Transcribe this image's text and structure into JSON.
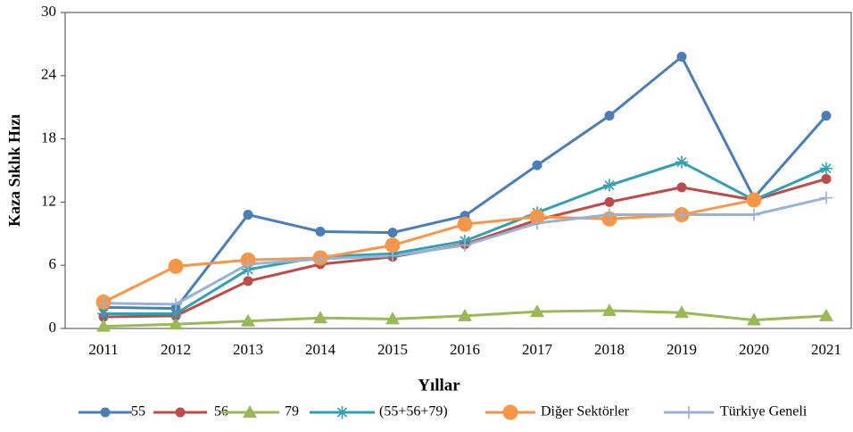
{
  "chart_data": {
    "type": "line",
    "x_label": "Yıllar",
    "y_label": "Kaza Sıklık Hızı",
    "categories": [
      "2011",
      "2012",
      "2013",
      "2014",
      "2015",
      "2016",
      "2017",
      "2018",
      "2019",
      "2020",
      "2021"
    ],
    "series": [
      {
        "name": "55",
        "color": "#4a7ebb",
        "marker": "circle",
        "values": [
          2.0,
          1.9,
          10.8,
          9.2,
          9.1,
          10.7,
          15.5,
          20.2,
          25.8,
          12.4,
          20.2
        ]
      },
      {
        "name": "56",
        "color": "#be4b48",
        "marker": "circle",
        "values": [
          1.1,
          1.2,
          4.5,
          6.1,
          6.8,
          8.0,
          10.3,
          12.0,
          13.4,
          12.2,
          14.2
        ]
      },
      {
        "name": "79",
        "color": "#98b954",
        "marker": "triangle",
        "values": [
          0.2,
          0.4,
          0.7,
          1.0,
          0.9,
          1.2,
          1.6,
          1.7,
          1.5,
          0.8,
          1.2
        ]
      },
      {
        "name": "(55+56+79)",
        "color": "#31a0b5",
        "marker": "asterisk",
        "values": [
          1.4,
          1.4,
          5.6,
          6.8,
          7.1,
          8.3,
          11.0,
          13.6,
          15.8,
          12.2,
          15.2
        ]
      },
      {
        "name": "Diğer Sektörler",
        "color": "#f79646",
        "marker": "bigcircle",
        "values": [
          2.5,
          5.9,
          6.5,
          6.7,
          7.9,
          9.9,
          10.6,
          10.4,
          10.8,
          12.2,
          null
        ]
      },
      {
        "name": "Türkiye Geneli",
        "color": "#95b3d7",
        "marker": "plus",
        "values": [
          2.4,
          2.3,
          6.1,
          6.6,
          6.9,
          7.9,
          10.0,
          10.8,
          10.8,
          10.8,
          12.4
        ]
      }
    ],
    "ylim": [
      0,
      30
    ],
    "yticks": [
      0,
      6,
      12,
      18,
      24,
      30
    ],
    "grid": false,
    "legend": "bottom"
  }
}
